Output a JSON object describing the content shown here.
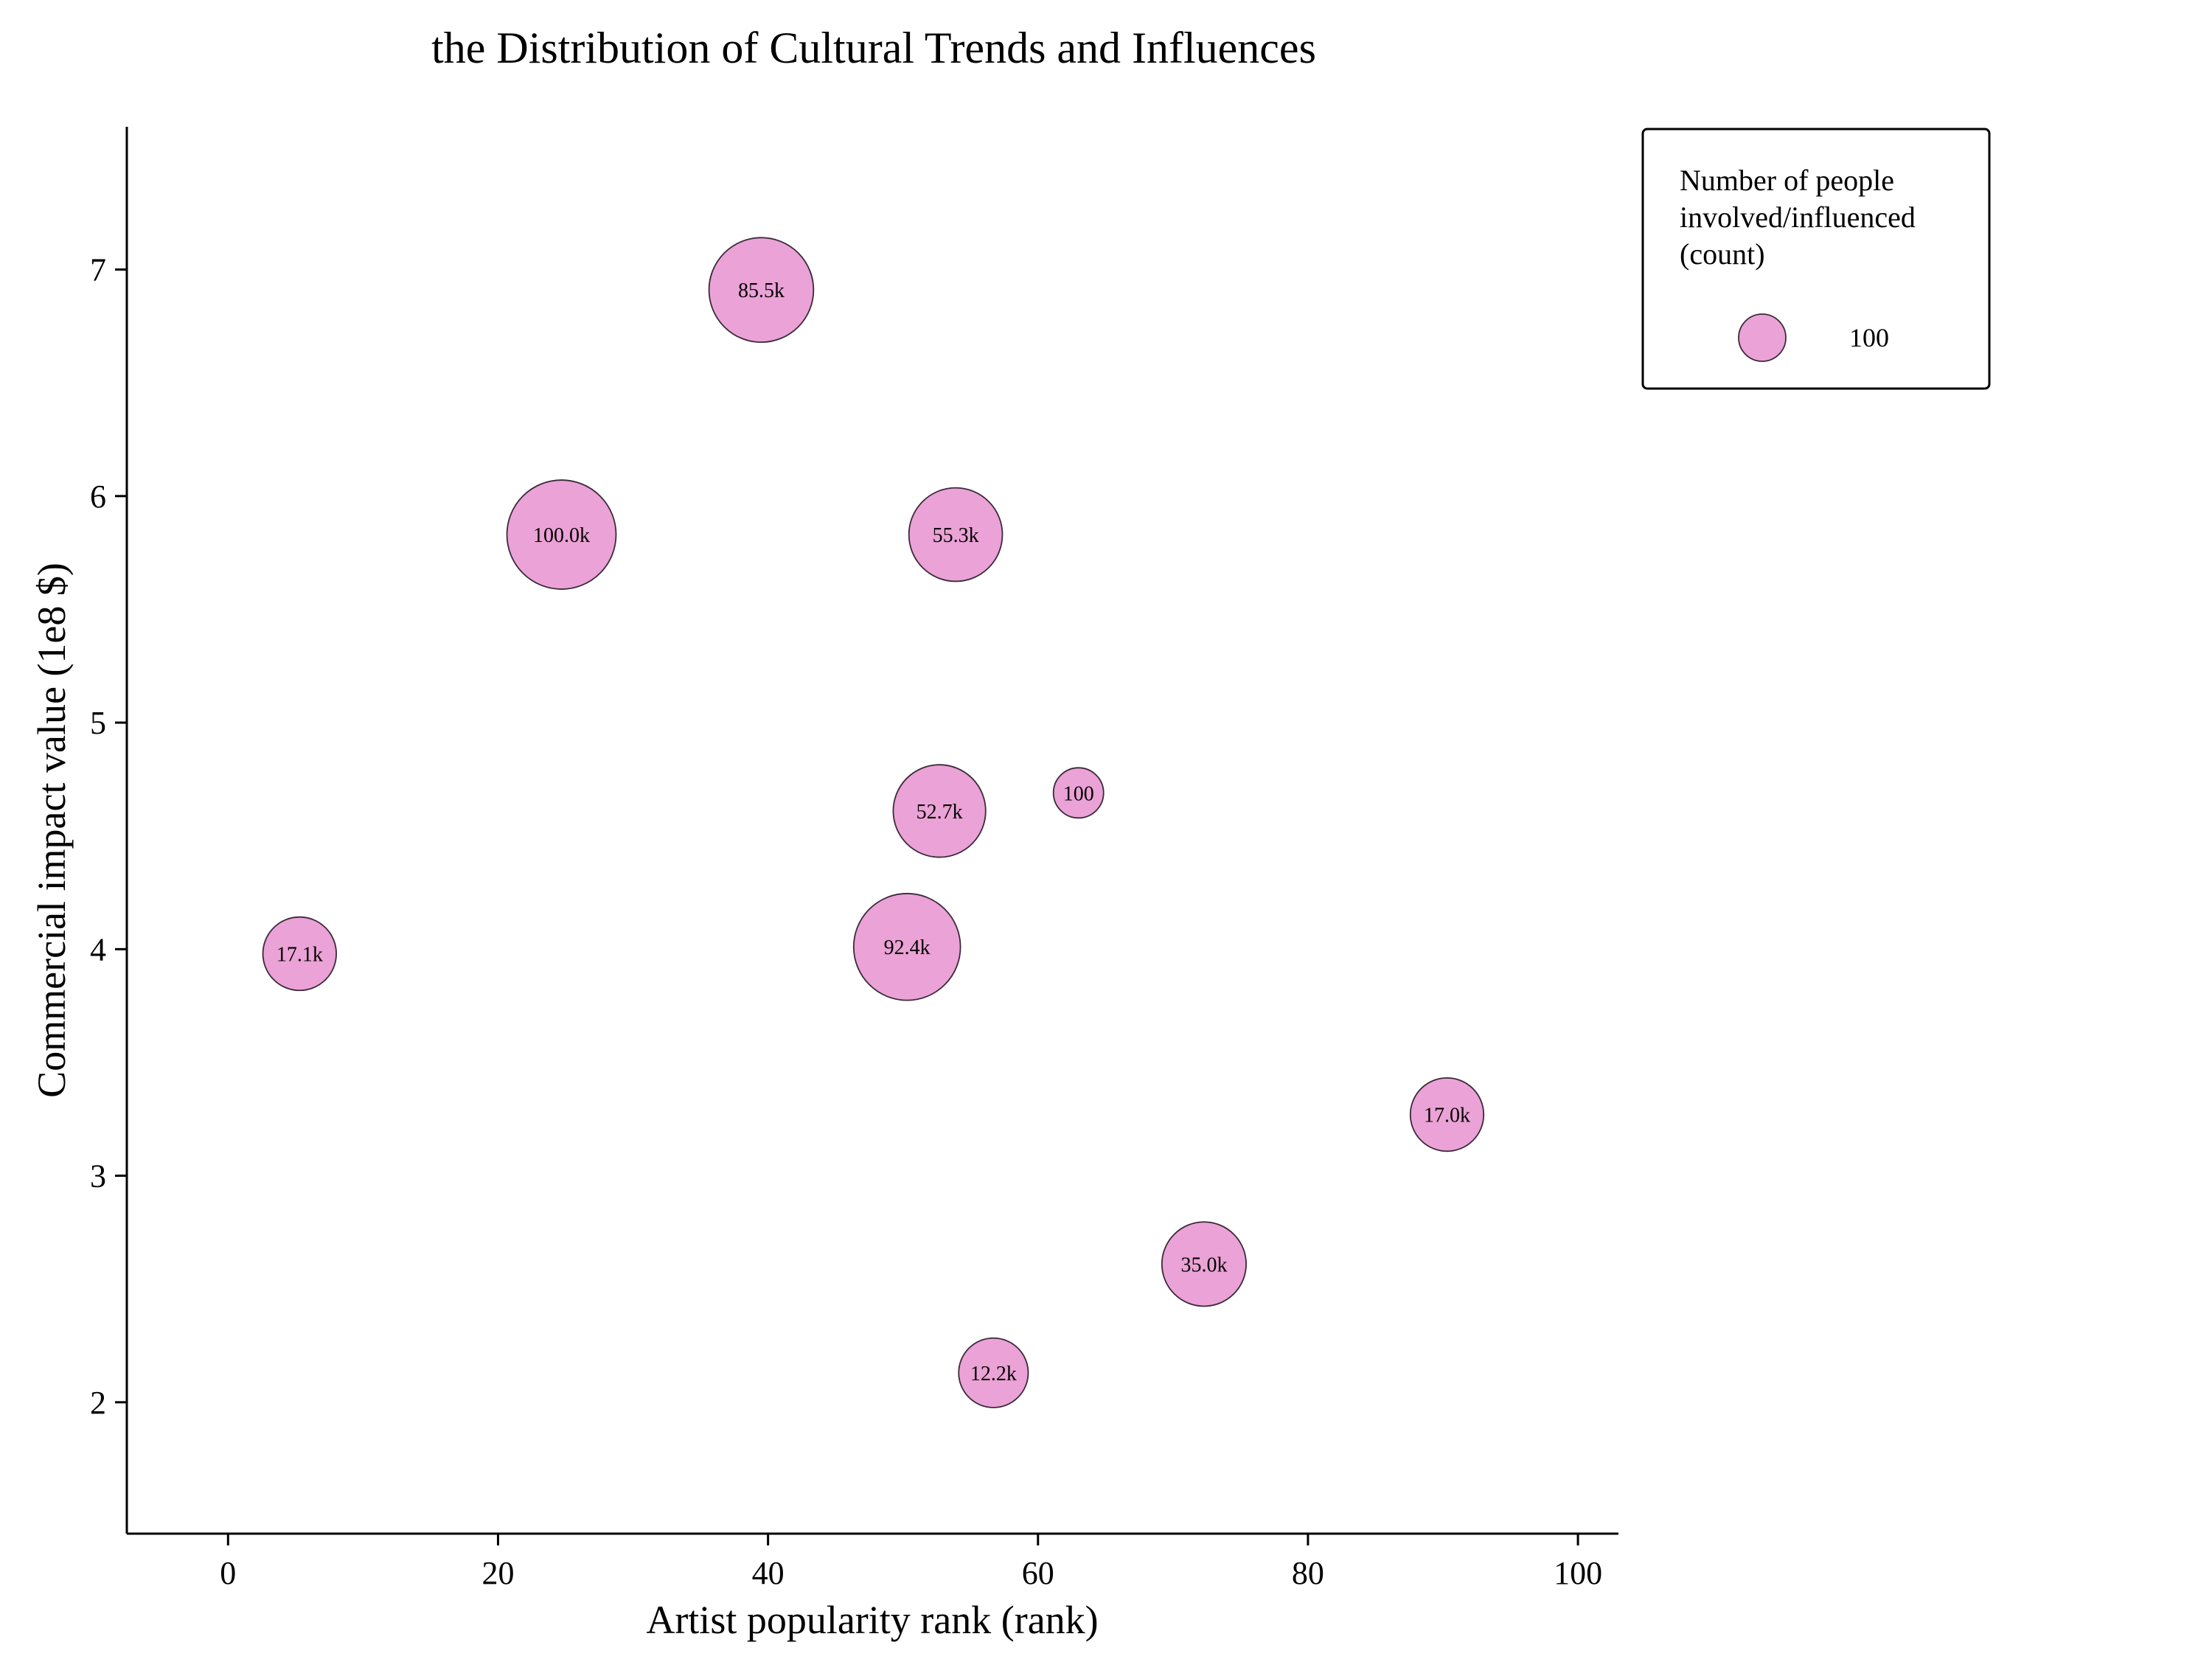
{
  "chart_data": {
    "type": "scatter",
    "title": "the Distribution of Cultural Trends and Influences",
    "xlabel": "Artist popularity rank (rank)",
    "ylabel": "Commercial impact value (1e8 $)",
    "xlim": [
      -7.5,
      103
    ],
    "ylim": [
      1.42,
      7.63
    ],
    "xticks": [
      0,
      20,
      40,
      60,
      80,
      100
    ],
    "yticks": [
      2,
      3,
      4,
      5,
      6,
      7
    ],
    "grid": false,
    "legend": {
      "title_lines": [
        "Number of people",
        "involved/influenced",
        "(count)"
      ],
      "entry_label": "100",
      "placement": "outside-top-right"
    },
    "bubble_color": "#eba2d6",
    "bubble_edge_color": "#3a2a3a",
    "points": [
      {
        "x": 39.5,
        "y": 6.91,
        "size": 85500,
        "label": "85.5k"
      },
      {
        "x": 24.7,
        "y": 5.83,
        "size": 100000,
        "label": "100.0k"
      },
      {
        "x": 53.9,
        "y": 5.83,
        "size": 55300,
        "label": "55.3k"
      },
      {
        "x": 52.7,
        "y": 4.61,
        "size": 52700,
        "label": "52.7k"
      },
      {
        "x": 63.0,
        "y": 4.69,
        "size": 100,
        "label": "100"
      },
      {
        "x": 5.3,
        "y": 3.98,
        "size": 17100,
        "label": "17.1k"
      },
      {
        "x": 50.3,
        "y": 4.01,
        "size": 92400,
        "label": "92.4k"
      },
      {
        "x": 90.3,
        "y": 3.27,
        "size": 17000,
        "label": "17.0k"
      },
      {
        "x": 72.3,
        "y": 2.61,
        "size": 35000,
        "label": "35.0k"
      },
      {
        "x": 56.7,
        "y": 2.13,
        "size": 12200,
        "label": "12.2k"
      }
    ]
  }
}
